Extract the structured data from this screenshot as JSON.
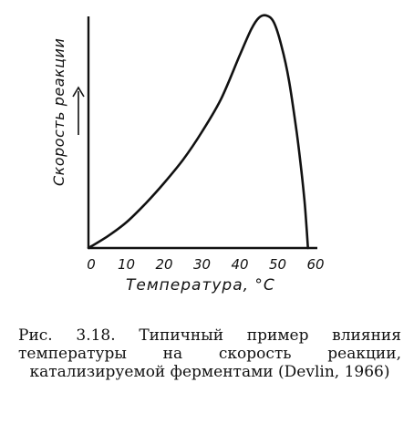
{
  "chart_data": {
    "type": "line",
    "title": "",
    "xlabel": "Температура, °С",
    "ylabel": "Скорость реакции",
    "xticks": [
      "0",
      "10",
      "20",
      "30",
      "40",
      "50",
      "60"
    ],
    "xlim": [
      0,
      60
    ],
    "ylim": [
      0,
      1
    ],
    "grid": false,
    "series": [
      {
        "x": [
          0,
          5,
          10,
          15,
          20,
          25,
          30,
          35,
          40,
          43,
          45,
          47,
          49,
          51,
          53,
          55,
          56,
          57,
          57.5,
          58
        ],
        "y": [
          0,
          0.05,
          0.11,
          0.19,
          0.28,
          0.38,
          0.5,
          0.64,
          0.83,
          0.94,
          0.99,
          1.0,
          0.97,
          0.87,
          0.72,
          0.5,
          0.37,
          0.22,
          0.12,
          0.0
        ]
      }
    ]
  },
  "caption": "Рис. 3.18. Типичный пример влияния температуры на скорость реакции, катализируемой ферментами (Devlin, 1966)",
  "colors": {
    "ink": "#111111",
    "background": "#ffffff"
  }
}
